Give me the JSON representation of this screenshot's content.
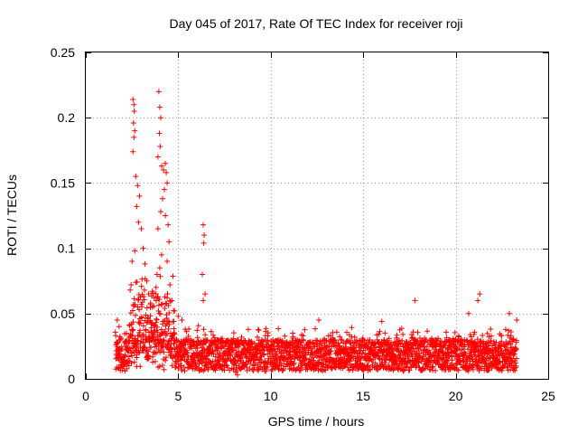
{
  "chart_data": {
    "type": "scatter",
    "title": "Day 045 of 2017, Rate Of TEC Index for receiver roji",
    "xlabel": "GPS time / hours",
    "ylabel": "ROTI / TECUs",
    "xlim": [
      0,
      25
    ],
    "ylim": [
      0,
      0.25
    ],
    "x_ticks": [
      "0",
      "5",
      "10",
      "15",
      "20",
      "25"
    ],
    "y_ticks": [
      "0",
      "0.05",
      "0.1",
      "0.15",
      "0.2",
      "0.25"
    ],
    "grid": true,
    "marker": "+",
    "marker_color": "#ff0000",
    "x_range_observed": [
      1.6,
      23.3
    ],
    "series": [
      {
        "points": [
          [
            2.55,
            0.214
          ],
          [
            2.6,
            0.21
          ],
          [
            2.62,
            0.205
          ],
          [
            2.58,
            0.196
          ],
          [
            2.65,
            0.19
          ],
          [
            2.6,
            0.185
          ],
          [
            2.55,
            0.174
          ],
          [
            2.7,
            0.155
          ],
          [
            2.8,
            0.148
          ],
          [
            2.9,
            0.14
          ],
          [
            2.75,
            0.132
          ],
          [
            2.85,
            0.12
          ],
          [
            3.0,
            0.115
          ],
          [
            3.1,
            0.1
          ],
          [
            2.65,
            0.098
          ],
          [
            2.5,
            0.09
          ],
          [
            2.45,
            0.072
          ],
          [
            2.4,
            0.068
          ],
          [
            3.2,
            0.088
          ],
          [
            3.3,
            0.075
          ],
          [
            3.4,
            0.065
          ],
          [
            3.5,
            0.058
          ],
          [
            3.6,
            0.055
          ],
          [
            3.7,
            0.062
          ],
          [
            3.8,
            0.07
          ],
          [
            3.9,
            0.115
          ],
          [
            3.95,
            0.22
          ],
          [
            4.0,
            0.208
          ],
          [
            4.05,
            0.2
          ],
          [
            3.98,
            0.188
          ],
          [
            4.02,
            0.178
          ],
          [
            3.9,
            0.17
          ],
          [
            4.1,
            0.163
          ],
          [
            4.2,
            0.16
          ],
          [
            4.3,
            0.165
          ],
          [
            4.35,
            0.158
          ],
          [
            4.4,
            0.15
          ],
          [
            4.25,
            0.145
          ],
          [
            4.15,
            0.138
          ],
          [
            4.05,
            0.128
          ],
          [
            4.3,
            0.125
          ],
          [
            4.45,
            0.118
          ],
          [
            4.5,
            0.105
          ],
          [
            4.1,
            0.095
          ],
          [
            4.0,
            0.085
          ],
          [
            3.85,
            0.08
          ],
          [
            4.4,
            0.09
          ],
          [
            4.55,
            0.072
          ],
          [
            4.65,
            0.06
          ],
          [
            4.8,
            0.052
          ],
          [
            5.0,
            0.048
          ],
          [
            5.2,
            0.045
          ],
          [
            6.35,
            0.118
          ],
          [
            6.4,
            0.11
          ],
          [
            6.38,
            0.104
          ],
          [
            6.3,
            0.08
          ],
          [
            6.45,
            0.065
          ],
          [
            6.35,
            0.06
          ],
          [
            17.8,
            0.06
          ],
          [
            21.3,
            0.065
          ],
          [
            21.2,
            0.06
          ],
          [
            20.7,
            0.05
          ],
          [
            22.9,
            0.05
          ],
          [
            23.3,
            0.045
          ],
          [
            12.6,
            0.045
          ],
          [
            16.0,
            0.044
          ],
          [
            1.7,
            0.045
          ],
          [
            1.8,
            0.04
          ],
          [
            8.1,
            0.005
          ],
          [
            8.2,
            0.003
          ]
        ]
      }
    ]
  }
}
